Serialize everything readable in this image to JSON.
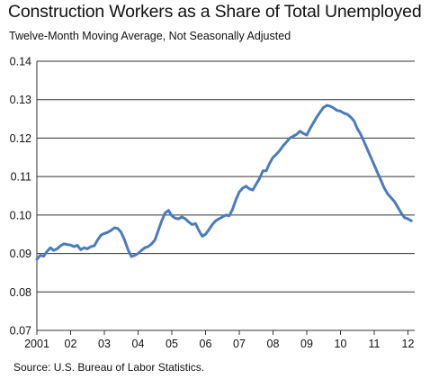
{
  "chart_data": {
    "type": "line",
    "title": "Construction Workers as a Share of Total Unemployed",
    "subtitle": "Twelve-Month Moving Average, Not Seasonally Adjusted",
    "source": "Source: U.S. Bureau of Labor Statistics.",
    "xlabel": "",
    "ylabel": "",
    "xlim": [
      2001.0,
      2012.2
    ],
    "ylim": [
      0.07,
      0.14
    ],
    "grid": true,
    "legend": "none",
    "y_ticks": [
      0.07,
      0.08,
      0.09,
      0.1,
      0.11,
      0.12,
      0.13,
      0.14
    ],
    "y_tick_labels": [
      "0.07",
      "0.08",
      "0.09",
      "0.10",
      "0.11",
      "0.12",
      "0.13",
      "0.14"
    ],
    "x_ticks": [
      2001,
      2002,
      2003,
      2004,
      2005,
      2006,
      2007,
      2008,
      2009,
      2010,
      2011,
      2012
    ],
    "x_tick_labels": [
      "2001",
      "02",
      "03",
      "04",
      "05",
      "06",
      "07",
      "08",
      "09",
      "10",
      "11",
      "12"
    ],
    "line_color": "#4a7bbf",
    "series": [
      {
        "x": [
          2001.0,
          2001.1,
          2001.2,
          2001.3,
          2001.4,
          2001.5,
          2001.6,
          2001.7,
          2001.8,
          2001.9,
          2002.0,
          2002.1,
          2002.2,
          2002.3,
          2002.4,
          2002.5,
          2002.6,
          2002.7,
          2002.8,
          2002.9,
          2003.0,
          2003.1,
          2003.2,
          2003.3,
          2003.4,
          2003.5,
          2003.6,
          2003.7,
          2003.8,
          2003.9,
          2004.0,
          2004.1,
          2004.2,
          2004.3,
          2004.4,
          2004.5,
          2004.6,
          2004.7,
          2004.8,
          2004.9,
          2005.0,
          2005.1,
          2005.2,
          2005.3,
          2005.4,
          2005.5,
          2005.6,
          2005.7,
          2005.8,
          2005.9,
          2006.0,
          2006.1,
          2006.2,
          2006.3,
          2006.4,
          2006.5,
          2006.6,
          2006.7,
          2006.8,
          2006.9,
          2007.0,
          2007.1,
          2007.2,
          2007.3,
          2007.4,
          2007.5,
          2007.6,
          2007.7,
          2007.8,
          2007.9,
          2008.0,
          2008.1,
          2008.2,
          2008.3,
          2008.4,
          2008.5,
          2008.6,
          2008.7,
          2008.8,
          2008.9,
          2009.0,
          2009.1,
          2009.2,
          2009.3,
          2009.4,
          2009.5,
          2009.6,
          2009.7,
          2009.8,
          2009.9,
          2010.0,
          2010.1,
          2010.2,
          2010.3,
          2010.4,
          2010.5,
          2010.6,
          2010.7,
          2010.8,
          2010.9,
          2011.0,
          2011.1,
          2011.2,
          2011.3,
          2011.4,
          2011.5,
          2011.6,
          2011.7,
          2011.8,
          2011.9,
          2012.0,
          2012.1
        ],
        "y": [
          0.0885,
          0.0895,
          0.0893,
          0.0905,
          0.0915,
          0.0908,
          0.0912,
          0.092,
          0.0925,
          0.0923,
          0.0922,
          0.0918,
          0.0921,
          0.091,
          0.0915,
          0.0912,
          0.0918,
          0.092,
          0.0935,
          0.0948,
          0.0952,
          0.0955,
          0.096,
          0.0967,
          0.0965,
          0.0955,
          0.0935,
          0.091,
          0.0892,
          0.0895,
          0.09,
          0.0908,
          0.0915,
          0.0918,
          0.0925,
          0.0935,
          0.096,
          0.0985,
          0.1005,
          0.1012,
          0.0998,
          0.0992,
          0.099,
          0.0995,
          0.099,
          0.0982,
          0.0975,
          0.0978,
          0.096,
          0.0945,
          0.095,
          0.0962,
          0.0975,
          0.0985,
          0.099,
          0.0995,
          0.1,
          0.0998,
          0.1015,
          0.104,
          0.106,
          0.107,
          0.1075,
          0.1068,
          0.1065,
          0.108,
          0.1095,
          0.1115,
          0.1115,
          0.1135,
          0.115,
          0.1158,
          0.1168,
          0.118,
          0.119,
          0.12,
          0.1205,
          0.121,
          0.1218,
          0.1212,
          0.1208,
          0.1225,
          0.124,
          0.1255,
          0.1268,
          0.128,
          0.1285,
          0.1283,
          0.1278,
          0.1272,
          0.127,
          0.1265,
          0.1262,
          0.1255,
          0.1245,
          0.1225,
          0.121,
          0.119,
          0.117,
          0.115,
          0.113,
          0.111,
          0.109,
          0.107,
          0.1055,
          0.1045,
          0.1035,
          0.102,
          0.1005,
          0.0993,
          0.099,
          0.0985
        ]
      }
    ]
  }
}
